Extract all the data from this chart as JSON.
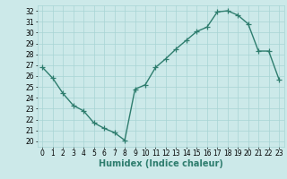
{
  "x": [
    0,
    1,
    2,
    3,
    4,
    5,
    6,
    7,
    8,
    9,
    10,
    11,
    12,
    13,
    14,
    15,
    16,
    17,
    18,
    19,
    20,
    21,
    22,
    23
  ],
  "y": [
    26.8,
    25.8,
    24.4,
    23.3,
    22.8,
    21.7,
    21.2,
    20.8,
    20.1,
    24.8,
    25.2,
    26.8,
    27.6,
    28.5,
    29.3,
    30.1,
    30.5,
    31.9,
    32.0,
    31.6,
    30.8,
    28.3,
    28.3,
    25.7
  ],
  "line_color": "#2e7d6e",
  "marker": "+",
  "marker_size": 4,
  "bg_color": "#cce9e9",
  "grid_color": "#a8d4d4",
  "xlabel": "Humidex (Indice chaleur)",
  "xlim": [
    -0.5,
    23.5
  ],
  "ylim": [
    19.5,
    32.5
  ],
  "yticks": [
    20,
    21,
    22,
    23,
    24,
    25,
    26,
    27,
    28,
    29,
    30,
    31,
    32
  ],
  "xticks": [
    0,
    1,
    2,
    3,
    4,
    5,
    6,
    7,
    8,
    9,
    10,
    11,
    12,
    13,
    14,
    15,
    16,
    17,
    18,
    19,
    20,
    21,
    22,
    23
  ],
  "tick_fontsize": 5.5,
  "xlabel_fontsize": 7,
  "line_width": 1.0,
  "marker_edge_width": 0.9
}
